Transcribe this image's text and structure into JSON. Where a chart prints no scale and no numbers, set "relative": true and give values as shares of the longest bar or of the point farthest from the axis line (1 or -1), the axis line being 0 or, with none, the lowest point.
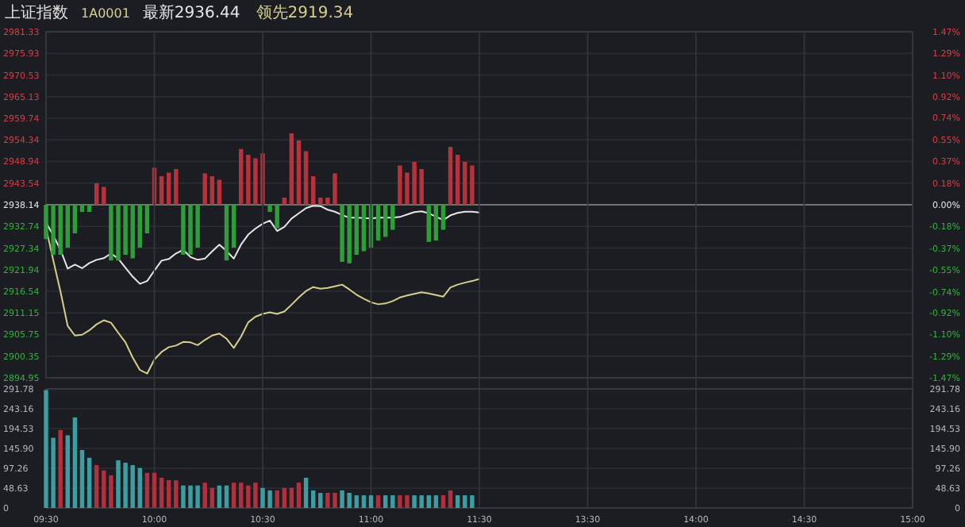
{
  "chart_data": [
    {
      "type": "line",
      "title": "上证指数",
      "subtitle": "1A0001",
      "annotations": [
        "最新2936.44",
        "领先2919.34"
      ],
      "tick_labels": "y",
      "categories": [
        null,
        null,
        null,
        null,
        null,
        null,
        null,
        null,
        null,
        null,
        null,
        null,
        null,
        null,
        null,
        null,
        null,
        null,
        null,
        null,
        null,
        null,
        null,
        null,
        null,
        null,
        null,
        null,
        null,
        null,
        null,
        null,
        null,
        null,
        null,
        null,
        null,
        null,
        null,
        null,
        null,
        null,
        null,
        null,
        null,
        null,
        null,
        null,
        null,
        null,
        null,
        null,
        null,
        null,
        null,
        null,
        null,
        null,
        null,
        null,
        null,
        null,
        null,
        null,
        null,
        null,
        null,
        null,
        null,
        null,
        null,
        null,
        null,
        null,
        null,
        null,
        null,
        null,
        null,
        null,
        null,
        null,
        null,
        null,
        null,
        null,
        null,
        null,
        null,
        null,
        null,
        null,
        null,
        null,
        null,
        null,
        null,
        null,
        null,
        null,
        null,
        null,
        null,
        null,
        null,
        null,
        null,
        null,
        null,
        null,
        null,
        null,
        null,
        null,
        null,
        null,
        null,
        null,
        null,
        null,
        null
      ],
      "ylim": [
        2894.95,
        2981.33
      ],
      "yticks": [
        2894.95,
        2900.35,
        2905.75,
        2911.15,
        2916.54,
        2921.94,
        2927.34,
        2932.74,
        2938.14,
        2943.54,
        2948.94,
        2954.34,
        2959.74,
        2965.13,
        2970.53,
        2975.93,
        2981.33
      ],
      "y2lim": [
        -1.47,
        1.47
      ],
      "y2ticks": [
        {
          "value": -1.47,
          "label": "-1.47%"
        },
        {
          "value": -1.29,
          "label": "-1.29%"
        },
        {
          "value": -1.1,
          "label": "-1.10%"
        },
        {
          "value": -0.92,
          "label": "-0.92%"
        },
        {
          "value": -0.74,
          "label": "-0.74%"
        },
        {
          "value": -0.55,
          "label": "-0.55%"
        },
        {
          "value": -0.37,
          "label": "-0.37%"
        },
        {
          "value": -0.18,
          "label": "-0.18%"
        },
        {
          "value": 0,
          "label": "0.00%"
        },
        {
          "value": 0.18,
          "label": "0.18%"
        },
        {
          "value": 0.37,
          "label": "0.37%"
        },
        {
          "value": 0.55,
          "label": "0.55%"
        },
        {
          "value": 0.74,
          "label": "0.74%"
        },
        {
          "value": 0.92,
          "label": "0.92%"
        },
        {
          "value": 1.1,
          "label": "1.10%"
        },
        {
          "value": 1.29,
          "label": "1.29%"
        },
        {
          "value": 1.47,
          "label": "1.47%"
        }
      ],
      "grid": true,
      "ref_lines": [
        {
          "axis": "y",
          "value": 2938.14,
          "color": "#8c8c8c"
        }
      ],
      "series": [
        {
          "color": "#e6e6e6",
          "values": [
            2933.7,
            2930.5,
            2926.9,
            2922.2,
            2923.2,
            2922.3,
            2923.6,
            2924.4,
            2924.8,
            2926.0,
            2924.7,
            2922.4,
            2920.2,
            2918.4,
            2919.1,
            2921.7,
            2924.2,
            2924.6,
            2926.0,
            2926.9,
            2925.1,
            2924.4,
            2924.7,
            2926.5,
            2928.2,
            2926.6,
            2924.7,
            2928.2,
            2930.7,
            2932.2,
            2933.4,
            2934.2,
            2931.6,
            2932.6,
            2934.7,
            2936.0,
            2937.3,
            2937.9,
            2937.8,
            2936.9,
            2936.4,
            2935.6,
            2934.9,
            2934.9,
            2934.8,
            2934.7,
            2934.9,
            2934.9,
            2934.9,
            2935.1,
            2935.7,
            2936.3,
            2936.5,
            2936.0,
            2935.2,
            2934.3,
            2935.5,
            2936.1,
            2936.4,
            2936.4,
            2936.2,
            null,
            null,
            null,
            null,
            null,
            null,
            null,
            null,
            null,
            null,
            null,
            null,
            null,
            null,
            null,
            null,
            null,
            null,
            null,
            null,
            null,
            null,
            null,
            null,
            null,
            null,
            null,
            null,
            null,
            null,
            null,
            null,
            null,
            null,
            null,
            null,
            null,
            null,
            null,
            null,
            null,
            null,
            null,
            null,
            null,
            null,
            null,
            null,
            null,
            null,
            null,
            null,
            null,
            null,
            null,
            null,
            null,
            null,
            null,
            null
          ]
        },
        {
          "color": "#d9cf8c",
          "values": [
            2932.4,
            2924.3,
            2916.5,
            2907.9,
            2905.5,
            2905.7,
            2906.8,
            2908.3,
            2909.3,
            2908.7,
            2906.2,
            2903.8,
            2900.0,
            2896.9,
            2896.0,
            2899.5,
            2901.4,
            2902.6,
            2903.0,
            2903.9,
            2903.8,
            2903.1,
            2904.4,
            2905.5,
            2906.0,
            2904.7,
            2902.4,
            2905.2,
            2908.8,
            2910.2,
            2910.9,
            2911.3,
            2910.9,
            2911.5,
            2913.2,
            2915.0,
            2916.6,
            2917.6,
            2917.2,
            2917.4,
            2917.8,
            2918.2,
            2917.0,
            2915.7,
            2914.7,
            2913.8,
            2913.3,
            2913.5,
            2914.1,
            2915.0,
            2915.5,
            2915.9,
            2916.3,
            2916.0,
            2915.6,
            2915.2,
            2917.5,
            2918.2,
            2918.7,
            2919.1,
            2919.6,
            null,
            null,
            null,
            null,
            null,
            null,
            null,
            null,
            null,
            null,
            null,
            null,
            null,
            null,
            null,
            null,
            null,
            null,
            null,
            null,
            null,
            null,
            null,
            null,
            null,
            null,
            null,
            null,
            null,
            null,
            null,
            null,
            null,
            null,
            null,
            null,
            null,
            null,
            null,
            null,
            null,
            null,
            null,
            null,
            null,
            null,
            null,
            null,
            null,
            null,
            null,
            null,
            null,
            null,
            null,
            null,
            null,
            null,
            null,
            null
          ]
        }
      ]
    },
    {
      "type": "bar",
      "relative": true,
      "categories": [
        null,
        null,
        null,
        null,
        null,
        null,
        null,
        null,
        null,
        null,
        null,
        null,
        null,
        null,
        null,
        null,
        null,
        null,
        null,
        null,
        null,
        null,
        null,
        null,
        null,
        null,
        null,
        null,
        null,
        null,
        null,
        null,
        null,
        null,
        null,
        null,
        null,
        null,
        null,
        null,
        null,
        null,
        null,
        null,
        null,
        null,
        null,
        null,
        null,
        null,
        null,
        null,
        null,
        null,
        null,
        null,
        null,
        null,
        null,
        null,
        null,
        null,
        null,
        null,
        null,
        null,
        null,
        null,
        null,
        null,
        null,
        null,
        null,
        null,
        null,
        null,
        null,
        null,
        null,
        null,
        null,
        null,
        null,
        null,
        null,
        null,
        null,
        null,
        null,
        null,
        null,
        null,
        null,
        null,
        null,
        null,
        null,
        null,
        null,
        null,
        null,
        null,
        null,
        null,
        null,
        null,
        null,
        null,
        null,
        null,
        null,
        null,
        null,
        null,
        null,
        null,
        null,
        null,
        null,
        null,
        null
      ],
      "values": [
        -0.48,
        -0.7,
        -0.7,
        -0.6,
        -0.4,
        -0.1,
        -0.1,
        0.3,
        0.25,
        -0.78,
        -0.78,
        -0.7,
        -0.75,
        -0.6,
        -0.4,
        0.52,
        0.4,
        0.45,
        0.5,
        -0.7,
        -0.7,
        -0.6,
        0.44,
        0.4,
        0.35,
        -0.78,
        -0.6,
        0.78,
        0.7,
        0.65,
        0.72,
        -0.1,
        -0.33,
        0.1,
        1.0,
        0.9,
        0.75,
        0.4,
        0.1,
        0.1,
        0.44,
        -0.8,
        -0.82,
        -0.7,
        -0.65,
        -0.6,
        -0.5,
        -0.45,
        -0.35,
        0.55,
        0.45,
        0.6,
        0.5,
        -0.52,
        -0.5,
        -0.35,
        0.81,
        0.7,
        0.6,
        0.55,
        null,
        null,
        null,
        null,
        null,
        null,
        null,
        null,
        null,
        null,
        null,
        null,
        null,
        null,
        null,
        null,
        null,
        null,
        null,
        null,
        null,
        null,
        null,
        null,
        null,
        null,
        null,
        null,
        null,
        null,
        null,
        null,
        null,
        null,
        null,
        null,
        null,
        null,
        null,
        null,
        null,
        null,
        null,
        null,
        null,
        null,
        null,
        null,
        null,
        null,
        null,
        null,
        null,
        null,
        null,
        null,
        null,
        null,
        null,
        null,
        null
      ],
      "colors": [
        "#2e9e3a",
        "#2e9e3a",
        "#2e9e3a",
        "#2e9e3a",
        "#2e9e3a",
        "#2e9e3a",
        "#2e9e3a",
        "#b8323c",
        "#b8323c",
        "#2e9e3a",
        "#2e9e3a",
        "#2e9e3a",
        "#2e9e3a",
        "#2e9e3a",
        "#2e9e3a",
        "#b8323c",
        "#b8323c",
        "#b8323c",
        "#b8323c",
        "#2e9e3a",
        "#2e9e3a",
        "#2e9e3a",
        "#b8323c",
        "#b8323c",
        "#b8323c",
        "#2e9e3a",
        "#2e9e3a",
        "#b8323c",
        "#b8323c",
        "#b8323c",
        "#b8323c",
        "#2e9e3a",
        "#2e9e3a",
        "#b8323c",
        "#b8323c",
        "#b8323c",
        "#b8323c",
        "#b8323c",
        "#b8323c",
        "#b8323c",
        "#b8323c",
        "#2e9e3a",
        "#2e9e3a",
        "#2e9e3a",
        "#2e9e3a",
        "#2e9e3a",
        "#2e9e3a",
        "#2e9e3a",
        "#2e9e3a",
        "#b8323c",
        "#b8323c",
        "#b8323c",
        "#b8323c",
        "#2e9e3a",
        "#2e9e3a",
        "#2e9e3a",
        "#b8323c",
        "#b8323c",
        "#b8323c",
        "#b8323c",
        null,
        null,
        null,
        null,
        null,
        null,
        null,
        null,
        null,
        null,
        null,
        null,
        null,
        null,
        null,
        null,
        null,
        null,
        null,
        null,
        null,
        null,
        null,
        null,
        null,
        null,
        null,
        null,
        null,
        null,
        null,
        null,
        null,
        null,
        null,
        null,
        null,
        null,
        null,
        null,
        null,
        null,
        null,
        null,
        null,
        null,
        null,
        null,
        null,
        null,
        null,
        null,
        null,
        null,
        null,
        null,
        null,
        null,
        null,
        null,
        null
      ]
    },
    {
      "type": "bar",
      "categories": [
        "09:30",
        null,
        null,
        null,
        null,
        null,
        null,
        null,
        null,
        null,
        null,
        null,
        null,
        null,
        null,
        "10:00",
        null,
        null,
        null,
        null,
        null,
        null,
        null,
        null,
        null,
        null,
        null,
        null,
        null,
        null,
        "10:30",
        null,
        null,
        null,
        null,
        null,
        null,
        null,
        null,
        null,
        null,
        null,
        null,
        null,
        null,
        "11:00",
        null,
        null,
        null,
        null,
        null,
        null,
        null,
        null,
        null,
        null,
        null,
        null,
        null,
        null,
        "11:30",
        null,
        null,
        null,
        null,
        null,
        null,
        null,
        null,
        null,
        null,
        null,
        null,
        null,
        null,
        "13:30",
        null,
        null,
        null,
        null,
        null,
        null,
        null,
        null,
        null,
        null,
        null,
        null,
        null,
        null,
        "14:00",
        null,
        null,
        null,
        null,
        null,
        null,
        null,
        null,
        null,
        null,
        null,
        null,
        null,
        null,
        "14:30",
        null,
        null,
        null,
        null,
        null,
        null,
        null,
        null,
        null,
        null,
        null,
        null,
        null,
        null,
        "15:00"
      ],
      "ylim": [
        0,
        291.78
      ],
      "yticks": [
        0,
        48.63,
        97.26,
        {
          "value": 145.9,
          "label": "145.90"
        },
        194.53,
        243.16,
        291.78
      ],
      "y2lim": [
        0,
        291.78
      ],
      "y2ticks": [
        0,
        48.63,
        97.26,
        {
          "value": 145.9,
          "label": "145.90"
        },
        194.53,
        243.16,
        291.78
      ],
      "grid": true,
      "values": [
        289,
        172,
        191,
        178,
        222,
        142,
        123,
        105,
        92,
        80,
        117,
        111,
        105,
        98,
        86,
        86,
        74,
        68,
        68,
        55,
        55,
        55,
        62,
        49,
        55,
        55,
        62,
        62,
        55,
        62,
        49,
        43,
        43,
        49,
        49,
        62,
        74,
        43,
        37,
        37,
        37,
        43,
        37,
        31,
        31,
        31,
        31,
        31,
        31,
        31,
        31,
        31,
        31,
        31,
        31,
        31,
        43,
        31,
        31,
        31,
        null,
        null,
        null,
        null,
        null,
        null,
        null,
        null,
        null,
        null,
        null,
        null,
        null,
        null,
        null,
        null,
        null,
        null,
        null,
        null,
        null,
        null,
        null,
        null,
        null,
        null,
        null,
        null,
        null,
        null,
        null,
        null,
        null,
        null,
        null,
        null,
        null,
        null,
        null,
        null,
        null,
        null,
        null,
        null,
        null,
        null,
        null,
        null,
        null,
        null,
        null,
        null,
        null,
        null,
        null,
        null,
        null,
        null,
        null,
        null,
        null
      ],
      "colors": [
        "#3a9ea3",
        "#3a9ea3",
        "#b0303e",
        "#3a9ea3",
        "#3a9ea3",
        "#3a9ea3",
        "#3a9ea3",
        "#b0303e",
        "#b0303e",
        "#b0303e",
        "#3a9ea3",
        "#3a9ea3",
        "#3a9ea3",
        "#3a9ea3",
        "#b0303e",
        "#b0303e",
        "#b0303e",
        "#b0303e",
        "#b0303e",
        "#3a9ea3",
        "#3a9ea3",
        "#3a9ea3",
        "#b0303e",
        "#b0303e",
        "#3a9ea3",
        "#3a9ea3",
        "#b0303e",
        "#b0303e",
        "#b0303e",
        "#b0303e",
        "#3a9ea3",
        "#3a9ea3",
        "#b0303e",
        "#b0303e",
        "#b0303e",
        "#b0303e",
        "#3a9ea3",
        "#3a9ea3",
        "#3a9ea3",
        "#b0303e",
        "#b0303e",
        "#3a9ea3",
        "#3a9ea3",
        "#3a9ea3",
        "#3a9ea3",
        "#3a9ea3",
        "#b0303e",
        "#3a9ea3",
        "#3a9ea3",
        "#b0303e",
        "#b0303e",
        "#3a9ea3",
        "#3a9ea3",
        "#3a9ea3",
        "#3a9ea3",
        "#b0303e",
        "#b0303e",
        "#3a9ea3",
        "#3a9ea3",
        "#3a9ea3",
        null,
        null,
        null,
        null,
        null,
        null,
        null,
        null,
        null,
        null,
        null,
        null,
        null,
        null,
        null,
        null,
        null,
        null,
        null,
        null,
        null,
        null,
        null,
        null,
        null,
        null,
        null,
        null,
        null,
        null,
        null,
        null,
        null,
        null,
        null,
        null,
        null,
        null,
        null,
        null,
        null,
        null,
        null,
        null,
        null,
        null,
        null,
        null,
        null,
        null,
        null,
        null,
        null,
        null,
        null,
        null,
        null,
        null,
        null,
        null,
        null
      ]
    }
  ]
}
